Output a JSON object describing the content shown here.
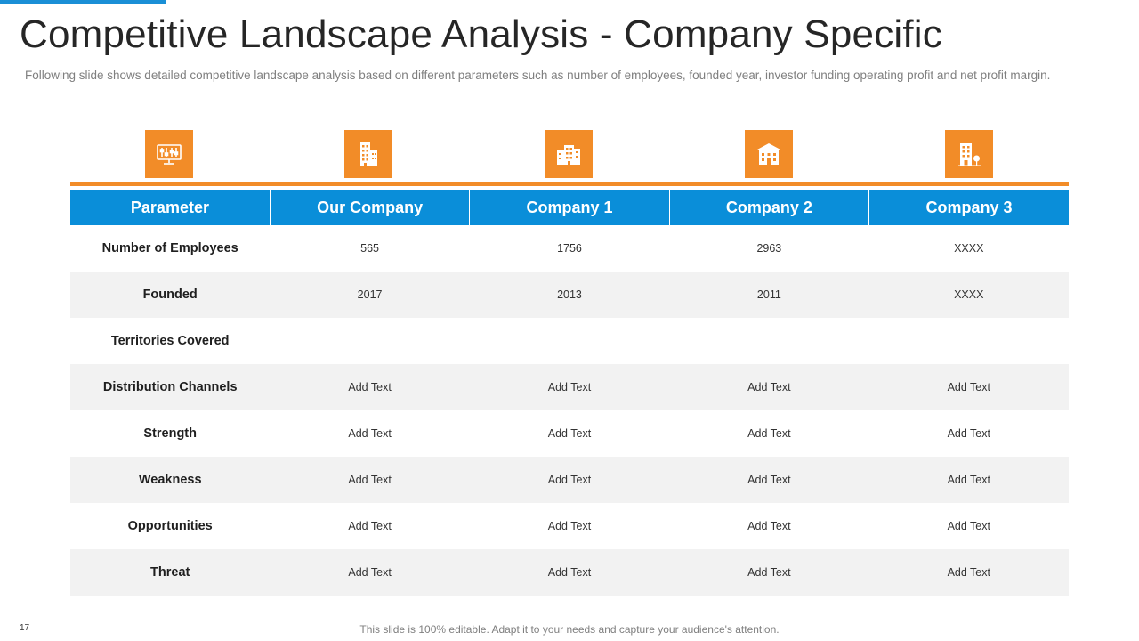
{
  "slide": {
    "title": "Competitive Landscape Analysis - Company Specific",
    "subtitle": "Following slide shows detailed competitive landscape analysis based on different parameters such as number of employees, founded year, investor funding operating profit and net profit margin.",
    "page_number": "17",
    "footer": "This slide is 100% editable. Adapt it to your needs and capture your audience's attention.",
    "colors": {
      "accent_orange": "#f28c28",
      "header_blue": "#0a8ed9",
      "row_shade": "#f2f2f2"
    }
  },
  "icons": [
    {
      "name": "monitor-sliders-icon"
    },
    {
      "name": "office-buildings-icon"
    },
    {
      "name": "city-buildings-icon"
    },
    {
      "name": "bank-building-icon"
    },
    {
      "name": "building-with-tree-icon"
    }
  ],
  "table": {
    "headers": [
      "Parameter",
      "Our Company",
      "Company 1",
      "Company 2",
      "Company 3"
    ],
    "rows": [
      {
        "param": "Number of Employees",
        "values": [
          "565",
          "1756",
          "2963",
          "XXXX"
        ]
      },
      {
        "param": "Founded",
        "values": [
          "2017",
          "2013",
          "2011",
          "XXXX"
        ]
      },
      {
        "param": "Territories Covered",
        "values": [
          "",
          "",
          "",
          ""
        ]
      },
      {
        "param": "Distribution Channels",
        "values": [
          "Add Text",
          "Add Text",
          "Add Text",
          "Add Text"
        ]
      },
      {
        "param": "Strength",
        "values": [
          "Add Text",
          "Add Text",
          "Add Text",
          "Add Text"
        ]
      },
      {
        "param": "Weakness",
        "values": [
          "Add Text",
          "Add Text",
          "Add Text",
          "Add Text"
        ]
      },
      {
        "param": "Opportunities",
        "values": [
          "Add Text",
          "Add Text",
          "Add Text",
          "Add Text"
        ]
      },
      {
        "param": "Threat",
        "values": [
          "Add Text",
          "Add Text",
          "Add Text",
          "Add Text"
        ]
      }
    ]
  }
}
